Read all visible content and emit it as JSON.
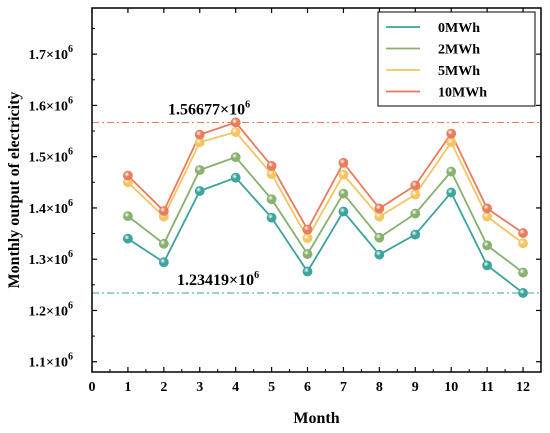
{
  "chart_data": {
    "type": "line",
    "xlabel": "Month",
    "ylabel": "Monthly output of electricity",
    "xlim": [
      0,
      12.5
    ],
    "ylim": [
      1080000,
      1790000
    ],
    "x_ticks": [
      0,
      1,
      2,
      3,
      4,
      5,
      6,
      7,
      8,
      9,
      10,
      11,
      12
    ],
    "y_ticks": [
      {
        "value": 1100000,
        "mantissa": "1.1×10",
        "exp": "6"
      },
      {
        "value": 1200000,
        "mantissa": "1.2×10",
        "exp": "6"
      },
      {
        "value": 1300000,
        "mantissa": "1.3×10",
        "exp": "6"
      },
      {
        "value": 1400000,
        "mantissa": "1.4×10",
        "exp": "6"
      },
      {
        "value": 1500000,
        "mantissa": "1.5×10",
        "exp": "6"
      },
      {
        "value": 1600000,
        "mantissa": "1.6×10",
        "exp": "6"
      },
      {
        "value": 1700000,
        "mantissa": "1.7×10",
        "exp": "6"
      }
    ],
    "grid": false,
    "legend_position": "top-right",
    "x": [
      1,
      2,
      3,
      4,
      5,
      6,
      7,
      8,
      9,
      10,
      11,
      12
    ],
    "series": [
      {
        "name": "0MWh",
        "color": "#3aa39b",
        "values": [
          1340000,
          1294000,
          1433000,
          1459000,
          1381000,
          1276000,
          1393000,
          1309000,
          1348000,
          1430000,
          1288000,
          1234190
        ]
      },
      {
        "name": "2MWh",
        "color": "#86b06c",
        "values": [
          1384000,
          1330000,
          1474000,
          1499000,
          1417000,
          1310000,
          1428000,
          1342000,
          1389000,
          1471000,
          1327000,
          1274000
        ]
      },
      {
        "name": "5MWh",
        "color": "#f3c561",
        "values": [
          1450000,
          1383000,
          1528000,
          1548000,
          1466000,
          1341000,
          1465000,
          1383000,
          1426000,
          1528000,
          1383000,
          1331000
        ]
      },
      {
        "name": "10MWh",
        "color": "#ea7a5b",
        "values": [
          1463000,
          1394000,
          1543000,
          1566770,
          1482000,
          1358000,
          1488000,
          1399000,
          1444000,
          1545000,
          1399000,
          1351000
        ]
      }
    ],
    "reference_lines": [
      {
        "value": 1566770,
        "color": "#ea7a5b",
        "label": "1.56677×10",
        "label_exp": "6"
      },
      {
        "value": 1234190,
        "color": "#3aa39b",
        "label": "1.23419×10",
        "label_exp": "6"
      }
    ]
  }
}
